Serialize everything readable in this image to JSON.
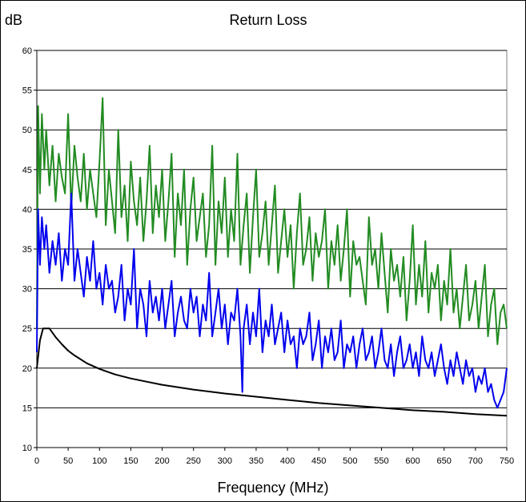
{
  "chart_data": {
    "type": "line",
    "title": "Return Loss",
    "ylabel": "dB",
    "xlabel": "Frequency (MHz)",
    "xlim": [
      0,
      750
    ],
    "ylim": [
      10,
      60
    ],
    "xticks": [
      0,
      50,
      100,
      150,
      200,
      250,
      300,
      350,
      400,
      450,
      500,
      550,
      600,
      650,
      700,
      750
    ],
    "yticks": [
      10,
      15,
      20,
      25,
      30,
      35,
      40,
      45,
      50,
      55,
      60
    ],
    "grid": "horizontal",
    "legend": "none",
    "series": [
      {
        "color": "#228b22",
        "x": [
          0,
          2,
          5,
          8,
          12,
          15,
          20,
          25,
          30,
          35,
          40,
          45,
          50,
          55,
          60,
          65,
          70,
          75,
          80,
          85,
          90,
          95,
          100,
          105,
          110,
          115,
          120,
          125,
          130,
          135,
          140,
          145,
          150,
          155,
          160,
          165,
          170,
          175,
          180,
          185,
          190,
          195,
          200,
          205,
          210,
          215,
          220,
          225,
          230,
          235,
          240,
          245,
          250,
          255,
          260,
          265,
          270,
          275,
          280,
          285,
          290,
          295,
          300,
          305,
          310,
          315,
          320,
          325,
          330,
          335,
          340,
          345,
          350,
          355,
          360,
          365,
          370,
          375,
          380,
          385,
          390,
          395,
          400,
          405,
          410,
          415,
          420,
          425,
          430,
          435,
          440,
          445,
          450,
          455,
          460,
          465,
          470,
          475,
          480,
          485,
          490,
          495,
          500,
          505,
          510,
          515,
          520,
          525,
          530,
          535,
          540,
          545,
          550,
          555,
          560,
          565,
          570,
          575,
          580,
          585,
          590,
          595,
          600,
          605,
          610,
          615,
          620,
          625,
          630,
          635,
          640,
          645,
          650,
          655,
          660,
          665,
          670,
          675,
          680,
          685,
          690,
          695,
          700,
          705,
          710,
          715,
          720,
          725,
          730,
          735,
          740,
          745,
          750
        ],
        "values": [
          25,
          53,
          42,
          52,
          45,
          50,
          43,
          48,
          41,
          47,
          44,
          42,
          52,
          40,
          48,
          44,
          41,
          47,
          40,
          45,
          42,
          39,
          46,
          54,
          38,
          45,
          41,
          37,
          50,
          39,
          43,
          36,
          46,
          41,
          38,
          44,
          36,
          41,
          48,
          37,
          43,
          39,
          45,
          36,
          41,
          47,
          34,
          42,
          38,
          45,
          33,
          40,
          44,
          36,
          39,
          42,
          34,
          38,
          48,
          33,
          41,
          37,
          44,
          34,
          40,
          36,
          47,
          33,
          38,
          42,
          32,
          39,
          45,
          34,
          37,
          41,
          33,
          38,
          43,
          32,
          36,
          40,
          34,
          38,
          30,
          37,
          42,
          33,
          35,
          39,
          31,
          37,
          34,
          36,
          40,
          30,
          36,
          33,
          38,
          31,
          35,
          40,
          29,
          36,
          33,
          34,
          31,
          28,
          39,
          33,
          35,
          30,
          37,
          32,
          27,
          35,
          31,
          33,
          29,
          34,
          26,
          31,
          38,
          28,
          33,
          29,
          36,
          27,
          32,
          30,
          33,
          26,
          31,
          28,
          35,
          27,
          30,
          25,
          29,
          33,
          26,
          28,
          31,
          25,
          29,
          33,
          24,
          28,
          30,
          23,
          27,
          28,
          25
        ]
      },
      {
        "color": "#0000ee",
        "x": [
          0,
          2,
          5,
          8,
          12,
          15,
          20,
          25,
          30,
          35,
          40,
          45,
          50,
          55,
          60,
          65,
          70,
          75,
          80,
          85,
          90,
          95,
          100,
          105,
          110,
          115,
          120,
          125,
          130,
          135,
          140,
          145,
          150,
          155,
          160,
          165,
          170,
          175,
          180,
          185,
          190,
          195,
          200,
          205,
          210,
          215,
          220,
          225,
          230,
          235,
          240,
          245,
          250,
          255,
          260,
          265,
          270,
          275,
          280,
          285,
          290,
          295,
          300,
          305,
          310,
          315,
          320,
          325,
          328,
          330,
          335,
          340,
          345,
          350,
          355,
          360,
          365,
          370,
          375,
          380,
          385,
          390,
          395,
          400,
          405,
          410,
          415,
          420,
          425,
          430,
          435,
          440,
          445,
          450,
          455,
          460,
          465,
          470,
          475,
          480,
          485,
          490,
          495,
          500,
          505,
          510,
          515,
          520,
          525,
          530,
          535,
          540,
          545,
          550,
          555,
          560,
          565,
          570,
          575,
          580,
          585,
          590,
          595,
          600,
          605,
          610,
          615,
          620,
          625,
          630,
          635,
          640,
          645,
          650,
          655,
          660,
          665,
          670,
          675,
          680,
          685,
          690,
          695,
          700,
          705,
          710,
          715,
          720,
          725,
          730,
          735,
          740,
          745,
          750
        ],
        "values": [
          22,
          40,
          33,
          39,
          35,
          38,
          32,
          36,
          33,
          37,
          31,
          35,
          33,
          42,
          31,
          35,
          32,
          29,
          34,
          31,
          36,
          30,
          32,
          28,
          33,
          30,
          31,
          27,
          29,
          33,
          26,
          30,
          28,
          35,
          25,
          30,
          28,
          24,
          31,
          27,
          29,
          26,
          30,
          25,
          28,
          31,
          24,
          27,
          29,
          26,
          25,
          30,
          27,
          29,
          24,
          28,
          26,
          32,
          24,
          27,
          30,
          25,
          28,
          23,
          27,
          26,
          30,
          24,
          17,
          25,
          28,
          23,
          27,
          24,
          30,
          22,
          26,
          24,
          28,
          23,
          25,
          27,
          22,
          26,
          23,
          24,
          20,
          25,
          23,
          24,
          27,
          21,
          23,
          26,
          20,
          24,
          22,
          25,
          21,
          22,
          26,
          20,
          23,
          22,
          24,
          20,
          23,
          25,
          21,
          22,
          24,
          20,
          22,
          25,
          21,
          20,
          23,
          19,
          22,
          24,
          20,
          21,
          23,
          20,
          22,
          19,
          24,
          21,
          20,
          22,
          19,
          21,
          23,
          20,
          18,
          21,
          19,
          22,
          20,
          18,
          21,
          19,
          20,
          17,
          19,
          18,
          20,
          17,
          18,
          16,
          15,
          16,
          17,
          20
        ]
      },
      {
        "color": "#000000",
        "x": [
          0,
          5,
          10,
          15,
          20,
          30,
          40,
          50,
          60,
          80,
          100,
          125,
          150,
          175,
          200,
          250,
          300,
          350,
          400,
          450,
          500,
          550,
          600,
          650,
          700,
          750
        ],
        "values": [
          20,
          23.5,
          25,
          25,
          25,
          23.9,
          23,
          22.2,
          21.6,
          20.6,
          19.9,
          19.2,
          18.7,
          18.3,
          17.9,
          17.3,
          16.8,
          16.4,
          16.0,
          15.6,
          15.3,
          15.0,
          14.7,
          14.5,
          14.2,
          14.0
        ]
      }
    ]
  }
}
